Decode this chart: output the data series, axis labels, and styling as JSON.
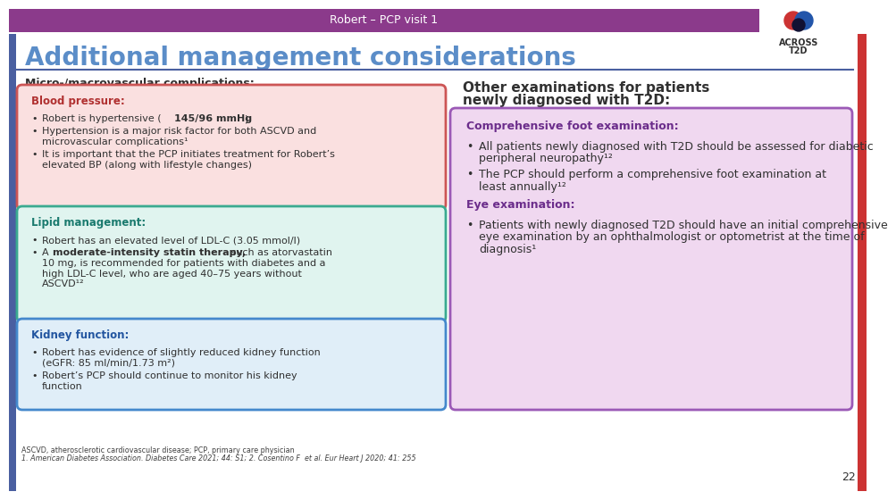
{
  "title_bar_text": "Robert – PCP visit 1",
  "title_bar_color": "#8B3A8B",
  "title_bar_text_color": "#FFFFFF",
  "title_bar_width": 840,
  "main_title": "Additional management considerations",
  "main_title_color": "#5B8DC8",
  "bg_color": "#FFFFFF",
  "left_panel_bg": "#FFFFFF",
  "left_border_accent": "#4A5FA0",
  "left_header": "Micro-/macrovascular complications:",
  "left_header_color": "#303030",
  "right_header_line1": "Other examinations for patients",
  "right_header_line2": "newly diagnosed with T2D:",
  "right_header_color": "#303030",
  "box1_header": "Blood pressure:",
  "box1_header_color": "#B03030",
  "box1_border": "#CC5555",
  "box1_bg": "#FAE0E0",
  "box1_bullets": [
    [
      "Robert is hypertensive (",
      "145/96 mmHg",
      ")"
    ],
    [
      "Hypertension is a major risk factor for both ASCVD and\nmicrovascular complications¹"
    ],
    [
      "It is important that the PCP initiates treatment for Robert’s\nelevated BP (along with lifestyle changes)"
    ]
  ],
  "box2_header": "Lipid management:",
  "box2_header_color": "#1A7A6E",
  "box2_border": "#3AAA90",
  "box2_bg": "#E0F4EF",
  "box2_bullets": [
    [
      "Robert has an elevated level of LDL-C (3.05 mmol/l)"
    ],
    [
      "A ",
      "moderate-intensity statin therapy,",
      " such as atorvastatin\n10 mg, is recommended for patients with diabetes and a\nhigh LDL-C level, who are aged 40–75 years without\nASCVD¹²"
    ]
  ],
  "box3_header": "Kidney function:",
  "box3_header_color": "#2255A0",
  "box3_border": "#4488CC",
  "box3_bg": "#E0EEF8",
  "box3_bullets": [
    [
      "Robert has evidence of slightly reduced kidney function\n(eGFR: 85 ml/min/1.73 m²)"
    ],
    [
      "Robert’s PCP should continue to monitor his kidney\nfunction"
    ]
  ],
  "right_big_box_border": "#9B59B6",
  "right_big_box_bg": "#F0D8F0",
  "box4_header": "Comprehensive foot examination:",
  "box4_header_color": "#6B2D8B",
  "box4_bullets": [
    [
      "All patients newly diagnosed with T2D should be assessed for diabetic\nperipheral neuropathy¹²"
    ],
    [
      "The PCP should perform a comprehensive foot examination at\nleast annually¹²"
    ]
  ],
  "box5_header": "Eye examination:",
  "box5_header_color": "#6B2D8B",
  "box5_bullets": [
    [
      "Patients with newly diagnosed T2D should have an initial comprehensive\neye examination by an ophthalmologist or optometrist at the time of\ndiagnosis¹"
    ]
  ],
  "footnote_line1": "ASCVD, atherosclerotic cardiovascular disease; PCP, primary care physician",
  "footnote_line2": "1. American Diabetes Association. Diabetes Care 2021; 44: S1; 2. Cosentino F  et al. Eur Heart J 2020; 41: 255",
  "footnote_color": "#404040",
  "page_number": "22",
  "red_accent_color": "#CC3333",
  "text_color": "#303030"
}
